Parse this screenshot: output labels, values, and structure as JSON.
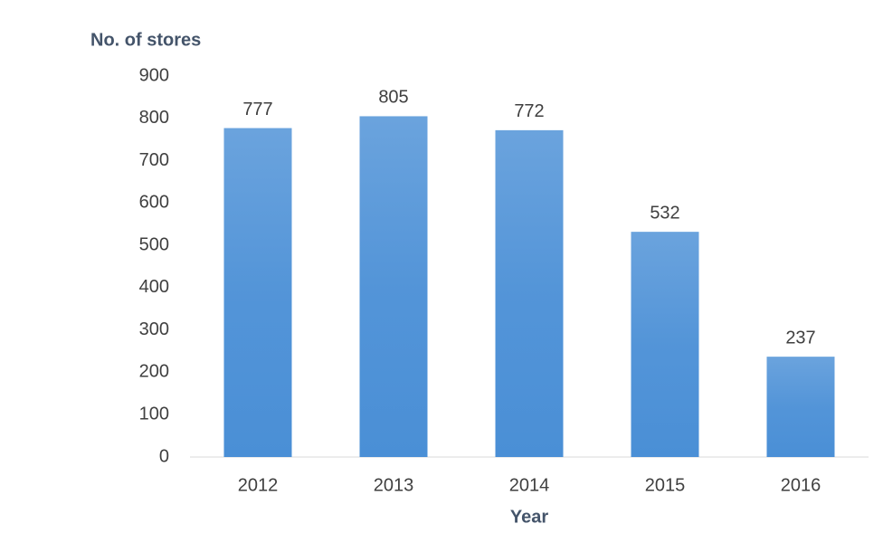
{
  "chart_data": {
    "type": "bar",
    "y_label": "No. of stores",
    "x_label": "Year",
    "categories": [
      "2012",
      "2013",
      "2014",
      "2015",
      "2016"
    ],
    "values": [
      777,
      805,
      772,
      532,
      237
    ],
    "color": "#4a8fd6",
    "ylim": [
      0,
      900
    ],
    "yticks": [
      0,
      100,
      200,
      300,
      400,
      500,
      600,
      700,
      800,
      900
    ],
    "grid": false,
    "data_labels": true
  }
}
